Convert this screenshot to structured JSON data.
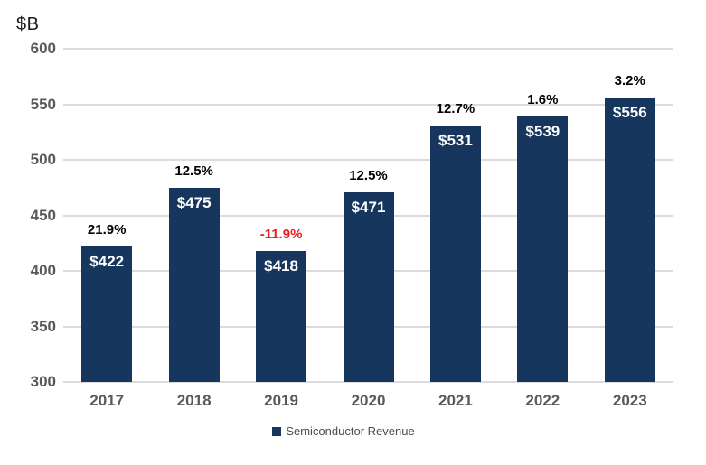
{
  "chart_data": {
    "type": "bar",
    "title": "",
    "unit_label": "$B",
    "categories": [
      "2017",
      "2018",
      "2019",
      "2020",
      "2021",
      "2022",
      "2023"
    ],
    "series": [
      {
        "name": "Semiconductor Revenue",
        "values": [
          422,
          475,
          418,
          471,
          531,
          539,
          556
        ]
      }
    ],
    "value_labels": [
      "$422",
      "$475",
      "$418",
      "$471",
      "$531",
      "$539",
      "$556"
    ],
    "pct_labels": [
      "21.9%",
      "12.5%",
      "-11.9%",
      "12.5%",
      "12.7%",
      "1.6%",
      "3.2%"
    ],
    "pct_negative": [
      false,
      false,
      true,
      false,
      false,
      false,
      false
    ],
    "yticks": [
      600,
      550,
      500,
      450,
      400,
      350,
      300
    ],
    "ylim": [
      300,
      600
    ],
    "grid": true,
    "legend_position": "bottom",
    "legend": [
      "Semiconductor Revenue"
    ]
  },
  "colors": {
    "bar": "#17365d",
    "negative_pct": "#ed1c24",
    "positive_pct": "#000000",
    "grid": "#dcdcdc",
    "axis_text": "#595959",
    "value_text": "#ffffff",
    "background": "#ffffff"
  }
}
